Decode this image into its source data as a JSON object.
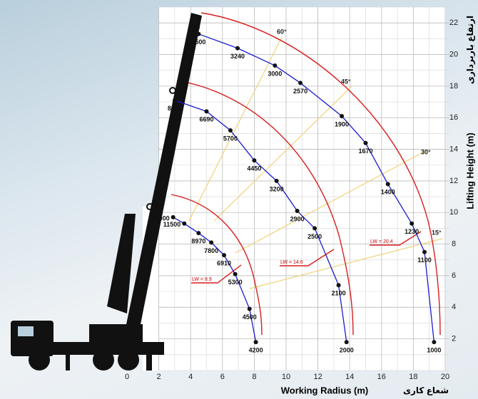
{
  "chart_data": {
    "type": "line",
    "x_label": "Working Radius (m)",
    "x_label_fa": "شعاع کاری",
    "y_label": "Lifting Height (m)",
    "y_label_fa": "ارتفاع باربرداری",
    "xlim": [
      0,
      20
    ],
    "ylim": [
      0,
      23
    ],
    "xticks": [
      0,
      2,
      4,
      6,
      8,
      10,
      12,
      14,
      16,
      18,
      20
    ],
    "yticks": [
      2,
      4,
      6,
      8,
      10,
      12,
      14,
      16,
      18,
      20,
      22
    ],
    "grid": true,
    "series": [
      {
        "color": "#1a1ad0",
        "x": [
          4.5,
          6.95,
          9.3,
          10.9,
          13.5,
          15.0,
          16.4,
          17.9,
          18.7,
          19.3
        ],
        "values": [
          21.3,
          20.4,
          19.3,
          18.2,
          16.1,
          14.4,
          11.8,
          9.3,
          7.5,
          1.8
        ],
        "loads": [
          "3500",
          "3240",
          "3000",
          "2570",
          "1900",
          "1670",
          "1400",
          "1230",
          "1100",
          "1000"
        ]
      },
      {
        "color": "#1a1ad0",
        "x": [
          3.0,
          5.0,
          6.5,
          8.0,
          9.4,
          10.7,
          11.8,
          13.3,
          13.8
        ],
        "values": [
          17.1,
          16.4,
          15.2,
          13.3,
          12.0,
          10.1,
          9.0,
          5.4,
          1.8
        ],
        "loads": [
          "8000",
          "6690",
          "5700",
          "4450",
          "3200",
          "2900",
          "2500",
          "2100",
          "2000"
        ]
      },
      {
        "color": "#1a1ad0",
        "x": [
          2.9,
          3.6,
          4.5,
          5.3,
          6.1,
          6.8,
          7.7,
          8.1
        ],
        "values": [
          9.7,
          9.3,
          8.7,
          8.1,
          7.3,
          6.1,
          3.9,
          1.8
        ],
        "loads": [
          "15000",
          "11500",
          "8970",
          "7800",
          "6910",
          "5300",
          "4500",
          "4200"
        ]
      }
    ],
    "angle_labels": [
      "60°",
      "45°",
      "30°",
      "15°"
    ],
    "lw_labels": [
      "LW = 20.4",
      "LW = 14.6",
      "LW = 8.9"
    ]
  }
}
